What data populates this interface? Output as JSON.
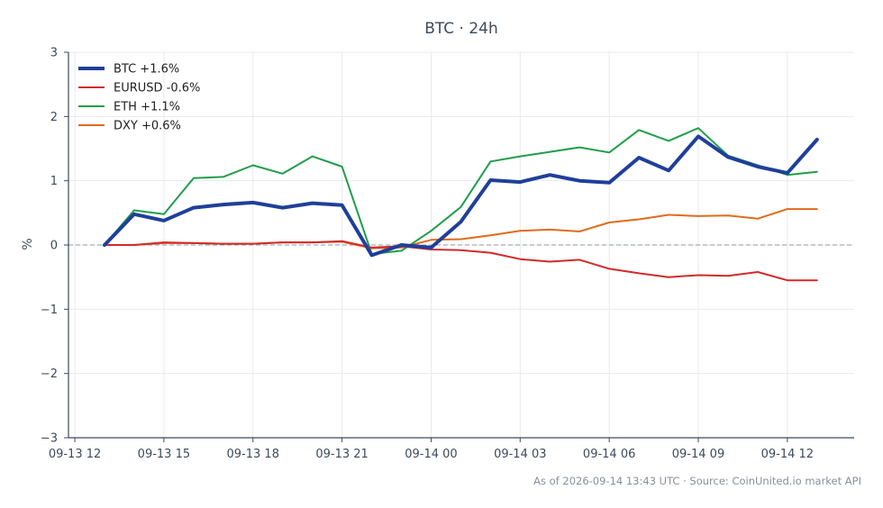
{
  "chart_data": {
    "type": "line",
    "title": "BTC · 24h",
    "xlabel": "",
    "ylabel": "%",
    "ylim": [
      -3,
      3
    ],
    "y_ticks": [
      -3,
      -2,
      -1,
      0,
      1,
      2,
      3
    ],
    "y_tick_labels": [
      "−3",
      "−2",
      "−1",
      "0",
      "1",
      "2",
      "3"
    ],
    "x_tick_labels": [
      "09-13 12",
      "09-13 15",
      "09-13 18",
      "09-13 21",
      "09-14 00",
      "09-14 03",
      "09-14 06",
      "09-14 09",
      "09-14 12"
    ],
    "x": [
      "09-13 13:00",
      "09-13 14:00",
      "09-13 15:00",
      "09-13 16:00",
      "09-13 17:00",
      "09-13 18:00",
      "09-13 19:00",
      "09-13 20:00",
      "09-13 21:00",
      "09-13 22:00",
      "09-13 23:00",
      "09-14 00:00",
      "09-14 01:00",
      "09-14 02:00",
      "09-14 03:00",
      "09-14 04:00",
      "09-14 05:00",
      "09-14 06:00",
      "09-14 07:00",
      "09-14 08:00",
      "09-14 09:00",
      "09-14 10:00",
      "09-14 11:00",
      "09-14 12:00",
      "09-14 13:00"
    ],
    "zero_line": true,
    "grid": true,
    "legend_position": "top-left",
    "series": [
      {
        "name": "BTC +1.6%",
        "color": "#1f3f9a",
        "width": 4,
        "values": [
          0,
          0.48,
          0.38,
          0.58,
          0.63,
          0.66,
          0.58,
          0.65,
          0.62,
          -0.16,
          0.0,
          -0.04,
          0.36,
          1.01,
          0.98,
          1.09,
          1.0,
          0.97,
          1.36,
          1.16,
          1.69,
          1.37,
          1.22,
          1.12,
          1.64
        ]
      },
      {
        "name": "EURUSD -0.6%",
        "color": "#d12a2a",
        "width": 2,
        "values": [
          0,
          0.0,
          0.04,
          0.03,
          0.02,
          0.02,
          0.04,
          0.04,
          0.06,
          -0.04,
          -0.02,
          -0.07,
          -0.08,
          -0.12,
          -0.22,
          -0.26,
          -0.23,
          -0.37,
          -0.44,
          -0.5,
          -0.47,
          -0.48,
          -0.42,
          -0.55,
          -0.55
        ]
      },
      {
        "name": "ETH +1.1%",
        "color": "#1f9e4a",
        "width": 2,
        "values": [
          0,
          0.54,
          0.48,
          1.04,
          1.06,
          1.24,
          1.11,
          1.38,
          1.22,
          -0.14,
          -0.09,
          0.22,
          0.59,
          1.3,
          1.38,
          1.45,
          1.52,
          1.44,
          1.79,
          1.62,
          1.82,
          1.39,
          1.24,
          1.09,
          1.14
        ]
      },
      {
        "name": "DXY +0.6%",
        "color": "#e26a1c",
        "width": 2,
        "values": [
          0,
          0.0,
          0.03,
          0.03,
          0.02,
          0.02,
          0.04,
          0.04,
          0.05,
          -0.05,
          -0.04,
          0.08,
          0.09,
          0.15,
          0.22,
          0.24,
          0.21,
          0.35,
          0.4,
          0.47,
          0.45,
          0.46,
          0.41,
          0.56,
          0.56
        ]
      }
    ]
  },
  "footer": "As of 2026-09-14 13:43 UTC · Source: CoinUnited.io market API"
}
